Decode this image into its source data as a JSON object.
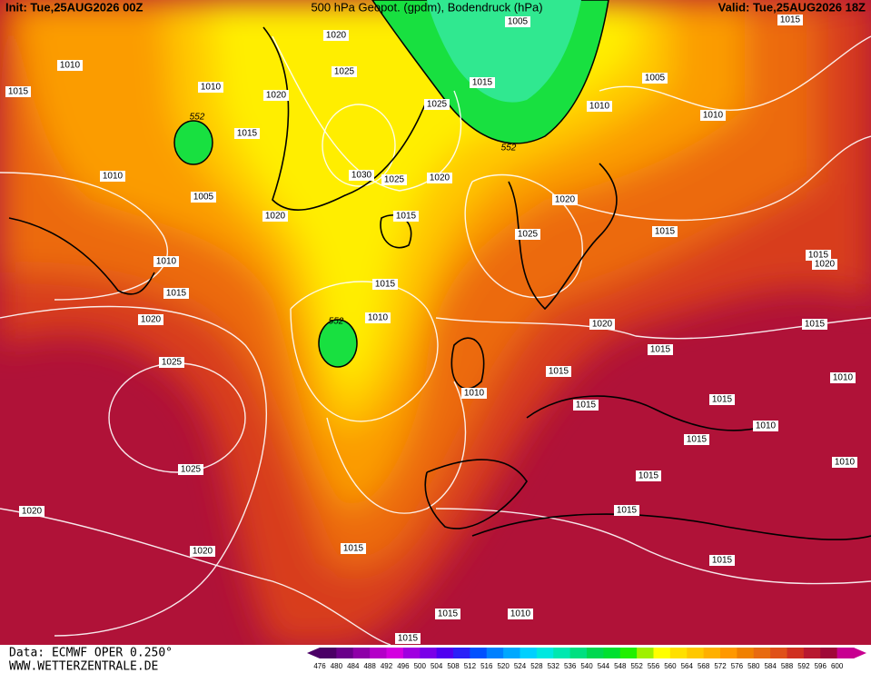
{
  "header": {
    "init": "Init: Tue,25AUG2026 00Z",
    "title": "500 hPa Geopot. (gpdm), Bodendruck (hPa)",
    "valid": "Valid: Tue,25AUG2026 18Z"
  },
  "isobar_labels": [
    "1015",
    "1020",
    "1005",
    "1010",
    "1015",
    "1010",
    "1025",
    "1020",
    "1015",
    "1025",
    "1005",
    "1010",
    "1010",
    "1015",
    "1010",
    "1030",
    "1025",
    "1020",
    "1005",
    "1020",
    "1020",
    "1015",
    "1015",
    "1025",
    "1010",
    "1015",
    "1020",
    "1015",
    "1015",
    "1020",
    "1010",
    "1020",
    "1015",
    "1015",
    "1025",
    "1015",
    "1010",
    "1010",
    "1015",
    "1015",
    "1010",
    "1015",
    "1025",
    "1015",
    "1010",
    "1020",
    "1015",
    "1015",
    "1020",
    "1015",
    "1015",
    "1010",
    "1015"
  ],
  "geopotential_labels": [
    "552",
    "552",
    "552"
  ],
  "footer": {
    "source": "Data: ECMWF OPER 0.250°",
    "site": "WWW.WETTERZENTRALE.DE"
  },
  "scale": {
    "values": [
      476,
      480,
      484,
      488,
      492,
      496,
      500,
      504,
      508,
      512,
      516,
      520,
      524,
      528,
      532,
      536,
      540,
      544,
      548,
      552,
      556,
      560,
      564,
      568,
      572,
      576,
      580,
      584,
      588,
      592,
      596,
      600
    ],
    "colors": [
      "#4b0066",
      "#6a008a",
      "#8e00a8",
      "#b400c8",
      "#d400e0",
      "#a000e0",
      "#7a00e8",
      "#5000f0",
      "#2a20f8",
      "#0050ff",
      "#0080ff",
      "#00a8ff",
      "#00d0ff",
      "#00e8e0",
      "#00e8b0",
      "#00e080",
      "#00d850",
      "#00e030",
      "#20f000",
      "#a0f000",
      "#ffff00",
      "#ffe000",
      "#ffc800",
      "#ffb000",
      "#ff9800",
      "#f08000",
      "#e86a10",
      "#e05018",
      "#d03020",
      "#b81830",
      "#a00838",
      "#c80090"
    ]
  }
}
